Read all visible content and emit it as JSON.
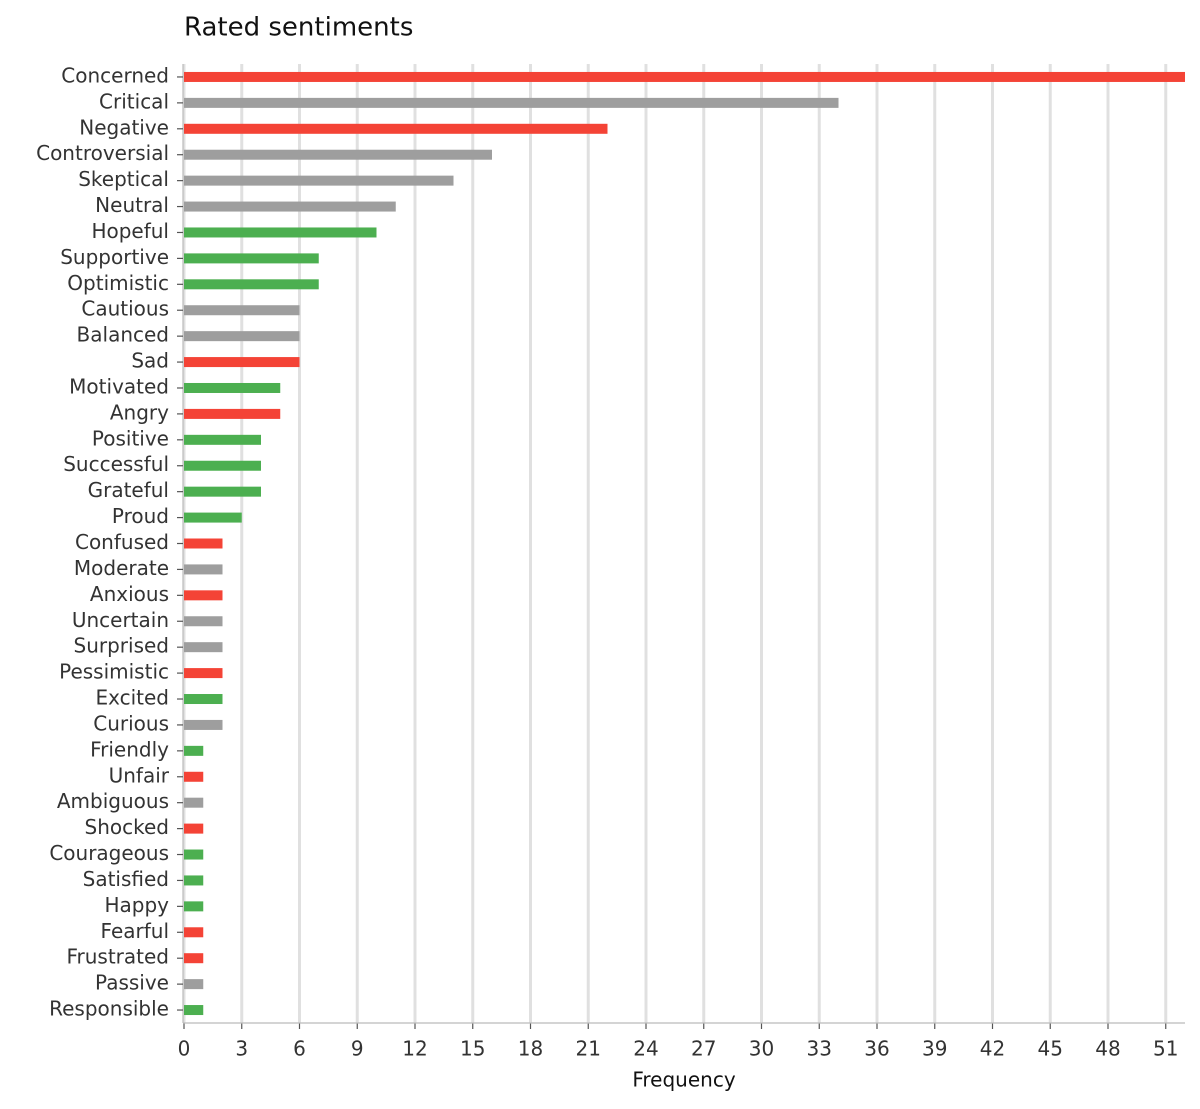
{
  "chart_data": {
    "type": "bar",
    "orientation": "horizontal",
    "title": "Rated sentiments",
    "xlabel": "Frequency",
    "categories": [
      "Concerned",
      "Critical",
      "Negative",
      "Controversial",
      "Skeptical",
      "Neutral",
      "Hopeful",
      "Supportive",
      "Optimistic",
      "Cautious",
      "Balanced",
      "Sad",
      "Motivated",
      "Angry",
      "Positive",
      "Successful",
      "Grateful",
      "Proud",
      "Confused",
      "Moderate",
      "Anxious",
      "Uncertain",
      "Surprised",
      "Pessimistic",
      "Excited",
      "Curious",
      "Friendly",
      "Unfair",
      "Ambiguous",
      "Shocked",
      "Courageous",
      "Satisfied",
      "Happy",
      "Fearful",
      "Frustrated",
      "Passive",
      "Responsible"
    ],
    "values": [
      52,
      34,
      22,
      16,
      14,
      11,
      10,
      7,
      7,
      6,
      6,
      6,
      5,
      5,
      4,
      4,
      4,
      3,
      2,
      2,
      2,
      2,
      2,
      2,
      2,
      2,
      1,
      1,
      1,
      1,
      1,
      1,
      1,
      1,
      1,
      1,
      1
    ],
    "colors": [
      "#f44336",
      "#9e9e9e",
      "#f44336",
      "#9e9e9e",
      "#9e9e9e",
      "#9e9e9e",
      "#4caf50",
      "#4caf50",
      "#4caf50",
      "#9e9e9e",
      "#9e9e9e",
      "#f44336",
      "#4caf50",
      "#f44336",
      "#4caf50",
      "#4caf50",
      "#4caf50",
      "#4caf50",
      "#f44336",
      "#9e9e9e",
      "#f44336",
      "#9e9e9e",
      "#9e9e9e",
      "#f44336",
      "#4caf50",
      "#9e9e9e",
      "#4caf50",
      "#f44336",
      "#9e9e9e",
      "#f44336",
      "#4caf50",
      "#4caf50",
      "#4caf50",
      "#f44336",
      "#f44336",
      "#9e9e9e",
      "#4caf50"
    ],
    "xlim": [
      0,
      52
    ],
    "xticks": [
      0,
      3,
      6,
      9,
      12,
      15,
      18,
      21,
      24,
      27,
      30,
      33,
      36,
      39,
      42,
      45,
      48,
      51
    ],
    "grid": true
  }
}
